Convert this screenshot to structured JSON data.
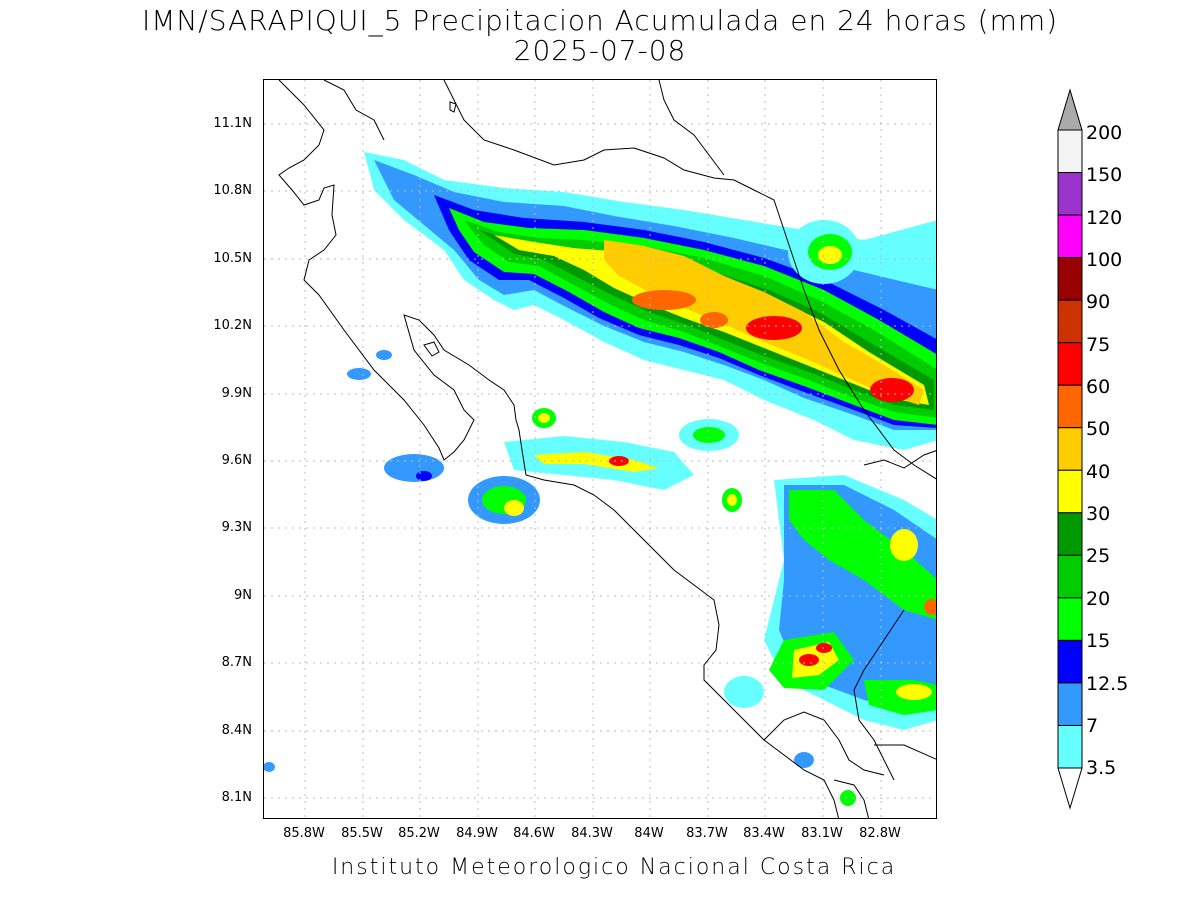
{
  "title": {
    "line1": "IMN/SARAPIQUI_5 Precipitacion Acumulada en 24 horas (mm)",
    "line2": "2025-07-08"
  },
  "lat_labels": [
    "11.1N",
    "10.8N",
    "10.5N",
    "10.2N",
    "9.9N",
    "9.6N",
    "9.3N",
    "9N",
    "8.7N",
    "8.4N",
    "8.1N"
  ],
  "lon_labels": [
    "85.8W",
    "85.5W",
    "85.2W",
    "84.9W",
    "84.6W",
    "84.3W",
    "84W",
    "83.7W",
    "83.4W",
    "83.1W",
    "82.8W"
  ],
  "credit": "Instituto Meteorologico Nacional Costa Rica",
  "legend": {
    "levels": [
      "200",
      "150",
      "120",
      "100",
      "90",
      "75",
      "60",
      "50",
      "40",
      "30",
      "25",
      "20",
      "15",
      "12.5",
      "7",
      "3.5"
    ],
    "colors": [
      "#f4f4f4",
      "#9933cc",
      "#ff00ff",
      "#990000",
      "#cc3300",
      "#ff0000",
      "#ff6600",
      "#ffcc00",
      "#ffff00",
      "#009900",
      "#00cc00",
      "#00ff00",
      "#0000ff",
      "#3399ff",
      "#66ffff"
    ],
    "upper_arrow_color": "#aaaaaa",
    "lower_arrow_color": "#ffffff"
  },
  "precip_colors": {
    "c3_5": "#66ffff",
    "c7": "#3399ff",
    "c12_5": "#0000ff",
    "c15": "#00ff00",
    "c20": "#00cc00",
    "c25": "#009900",
    "c30": "#ffff00",
    "c40": "#ffcc00",
    "c50": "#ff6600",
    "c60": "#ff0000"
  }
}
